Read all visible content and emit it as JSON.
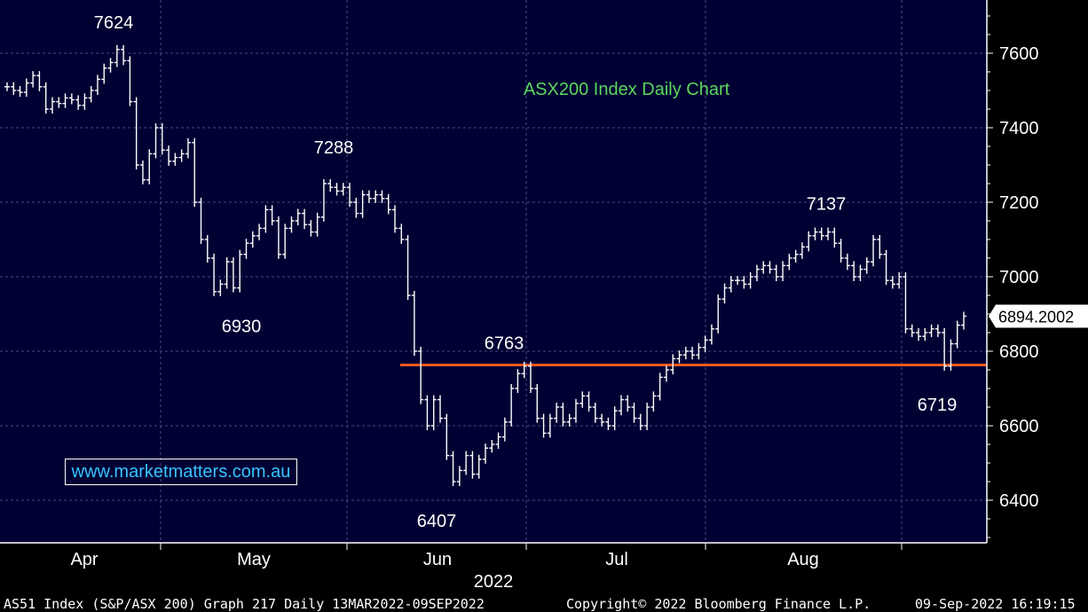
{
  "chart_data": {
    "type": "line",
    "title": "ASX200 Index Daily Chart",
    "year_label": "2022",
    "x_tick_labels": [
      "Apr",
      "May",
      "Jun",
      "Jul",
      "Aug"
    ],
    "y_ticks": [
      6400,
      6600,
      6800,
      7000,
      7200,
      7400,
      7600
    ],
    "ylim": [
      6300,
      7700
    ],
    "last_value_label": "6894.2002",
    "series": [
      {
        "values": [
          7510,
          7500,
          7495,
          7520,
          7540,
          7510,
          7450,
          7470,
          7465,
          7480,
          7475,
          7460,
          7480,
          7500,
          7530,
          7560,
          7575,
          7610,
          7580,
          7470,
          7300,
          7260,
          7330,
          7400,
          7340,
          7310,
          7320,
          7330,
          7360,
          7200,
          7100,
          7050,
          6960,
          6980,
          7040,
          6970,
          7060,
          7090,
          7110,
          7130,
          7180,
          7150,
          7060,
          7130,
          7150,
          7170,
          7140,
          7120,
          7160,
          7250,
          7240,
          7230,
          7240,
          7200,
          7170,
          7220,
          7210,
          7220,
          7210,
          7180,
          7130,
          7100,
          6950,
          6800,
          6670,
          6600,
          6670,
          6620,
          6520,
          6450,
          6480,
          6520,
          6470,
          6510,
          6540,
          6550,
          6570,
          6610,
          6700,
          6740,
          6760,
          6700,
          6620,
          6580,
          6620,
          6650,
          6610,
          6620,
          6660,
          6680,
          6650,
          6620,
          6610,
          6600,
          6640,
          6670,
          6650,
          6620,
          6600,
          6650,
          6680,
          6730,
          6750,
          6780,
          6790,
          6800,
          6790,
          6810,
          6830,
          6860,
          6940,
          6970,
          6990,
          6990,
          6980,
          7000,
          7020,
          7030,
          7020,
          7000,
          7030,
          7050,
          7060,
          7080,
          7110,
          7120,
          7110,
          7120,
          7090,
          7050,
          7030,
          7000,
          7020,
          7040,
          7100,
          7060,
          6990,
          6980,
          7000,
          6860,
          6850,
          6840,
          6850,
          6860,
          6850,
          6760,
          6820,
          6870,
          6894
        ]
      }
    ],
    "annotations": [
      {
        "label": "7624",
        "value": 7624,
        "pos": "above"
      },
      {
        "label": "7288",
        "value": 7288,
        "pos": "above"
      },
      {
        "label": "6930",
        "value": 6930,
        "pos": "below"
      },
      {
        "label": "6763",
        "value": 6763,
        "pos": "above"
      },
      {
        "label": "6407",
        "value": 6407,
        "pos": "below"
      },
      {
        "label": "7137",
        "value": 7137,
        "pos": "above"
      },
      {
        "label": "6719",
        "value": 6719,
        "pos": "below"
      }
    ],
    "support_line": 6763,
    "grid": true,
    "colors": {
      "background": "#000033",
      "price": "#ffffff",
      "grid": "#4a4a80",
      "support": "#ff5a1f",
      "title": "#5cd65c"
    }
  },
  "watermark": "www.marketmatters.com.au",
  "footer": {
    "left": "AS51 Index (S&P/ASX 200) Graph 217  Daily 13MAR2022-09SEP2022",
    "center": "Copyright© 2022 Bloomberg Finance L.P.",
    "right": "09-Sep-2022 16:19:15"
  }
}
